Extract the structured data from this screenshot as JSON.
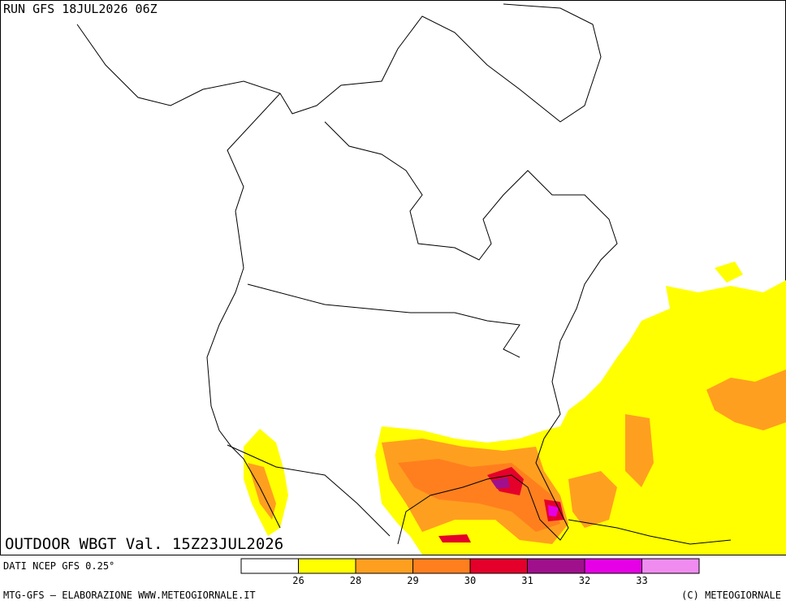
{
  "header": {
    "run": "RUN GFS 18JUL2026 06Z"
  },
  "map": {
    "caption": "OUTDOOR WBGT Val. 15Z23JUL2026"
  },
  "legend": {
    "colors": [
      "#ffffff",
      "#ffff00",
      "#ff9f1f",
      "#ff7f1e",
      "#e4002a",
      "#a0108c",
      "#e600e6",
      "#f08cf0"
    ],
    "labels": [
      26,
      28,
      29,
      30,
      31,
      32,
      33
    ]
  },
  "footer": {
    "source": "DATI NCEP GFS 0.25°",
    "credit": "MTG-GFS — ELABORAZIONE WWW.METEOGIORNALE.IT",
    "copyright": "(C) METEOGIORNALE"
  }
}
